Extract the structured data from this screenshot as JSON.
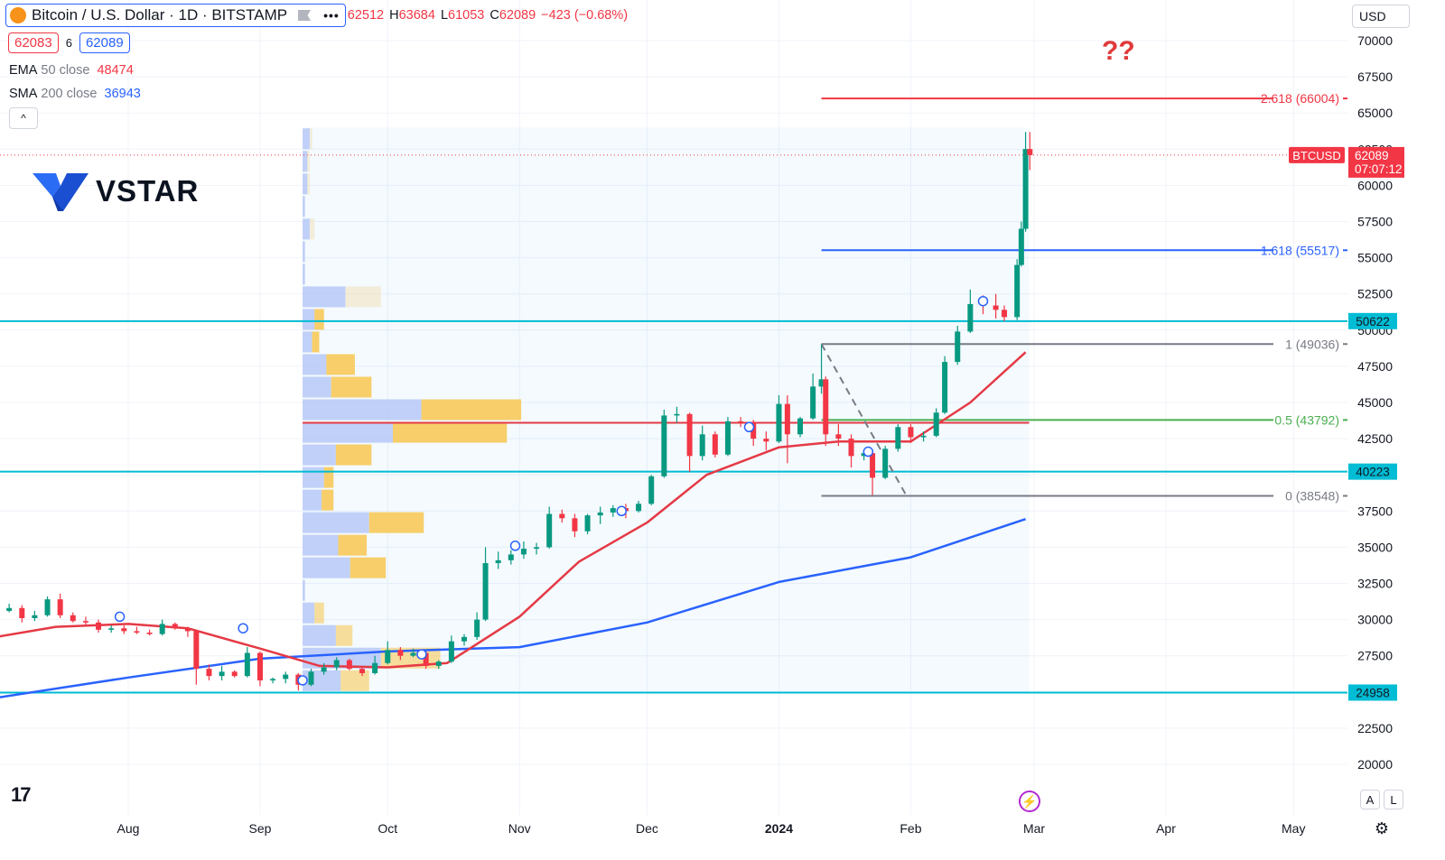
{
  "header": {
    "symbol_title": "Bitcoin / U.S. Dollar · 1D · BITSTAMP",
    "coin_glyph": "₿",
    "dots": "•••",
    "ohlc": {
      "o_label": "",
      "o_value": "62512",
      "h_label": "H",
      "h_value": "63684",
      "l_label": "L",
      "l_value": "61053",
      "c_label": "C",
      "c_value": "62089",
      "change": "−423 (−0.68%)"
    }
  },
  "price_row": {
    "sell": "62083",
    "spread": "6",
    "buy": "62089"
  },
  "indicators": [
    {
      "name": "EMA",
      "args": "50 close",
      "value": "48474",
      "color": "#f23645"
    },
    {
      "name": "SMA",
      "args": "200 close",
      "value": "36943",
      "color": "#2962ff"
    }
  ],
  "collapse_glyph": "^",
  "logo_text": "VSTAR",
  "currency": "USD",
  "annotation": "??",
  "tv_logo": "17",
  "bolt_glyph": "⚡",
  "btn_a": "A",
  "btn_l": "L",
  "gear_glyph": "⚙",
  "chart_data": {
    "type": "candlestick",
    "symbol": "BTCUSD",
    "interval": "1D",
    "yticks": [
      20000,
      22500,
      25000,
      27500,
      30000,
      32500,
      35000,
      37500,
      40000,
      42500,
      45000,
      47500,
      50000,
      52500,
      55000,
      57500,
      60000,
      62500,
      65000,
      67500,
      70000
    ],
    "xticks": [
      {
        "label": "Aug",
        "date": "2023-08-01"
      },
      {
        "label": "Sep",
        "date": "2023-09-01"
      },
      {
        "label": "Oct",
        "date": "2023-10-01"
      },
      {
        "label": "Nov",
        "date": "2023-11-01"
      },
      {
        "label": "Dec",
        "date": "2023-12-01"
      },
      {
        "label": "2024",
        "date": "2024-01-01",
        "bold": true
      },
      {
        "label": "Feb",
        "date": "2024-02-01"
      },
      {
        "label": "Mar",
        "date": "2024-03-01"
      },
      {
        "label": "Apr",
        "date": "2024-04-01"
      },
      {
        "label": "May",
        "date": "2024-05-01"
      }
    ],
    "last_price": {
      "value": 62089,
      "label": "BTCUSD",
      "countdown": "07:07:12",
      "color": "#f23645"
    },
    "horizontal_levels": [
      {
        "value": 50622,
        "label": "50622",
        "color": "#00bcd4"
      },
      {
        "value": 40223,
        "label": "40223",
        "color": "#00bcd4"
      },
      {
        "value": 24958,
        "label": "24958",
        "color": "#00bcd4"
      }
    ],
    "fibonacci": {
      "start_date": "2024-01-11",
      "end_date": "2024-02-28",
      "levels": [
        {
          "ratio": "2.618",
          "value": 66004,
          "label": "2.618 (66004)",
          "color": "#f23645"
        },
        {
          "ratio": "1.618",
          "value": 55517,
          "label": "1.618 (55517)",
          "color": "#2962ff"
        },
        {
          "ratio": "1",
          "value": 49036,
          "label": "1 (49036)",
          "color": "#787b86"
        },
        {
          "ratio": "0.5",
          "value": 43792,
          "label": "0.5 (43792)",
          "color": "#4caf50"
        },
        {
          "ratio": "0",
          "value": 38548,
          "label": "0 (38548)",
          "color": "#787b86"
        }
      ]
    },
    "fib_dashed_trend": {
      "from": {
        "date": "2024-01-11",
        "value": 49036
      },
      "to": {
        "date": "2024-01-31",
        "value": 38548
      }
    },
    "volume_profile": {
      "start_date": "2023-09-11",
      "end_date": "2024-02-28",
      "poc_value": 43600,
      "rows": [
        {
          "price": 62500,
          "buy": 3,
          "sell": 1
        },
        {
          "price": 61000,
          "buy": 2,
          "sell": 1
        },
        {
          "price": 59500,
          "buy": 2,
          "sell": 1
        },
        {
          "price": 58000,
          "buy": 1,
          "sell": 0
        },
        {
          "price": 56500,
          "buy": 3,
          "sell": 2
        },
        {
          "price": 55000,
          "buy": 1,
          "sell": 0
        },
        {
          "price": 53500,
          "buy": 1,
          "sell": 0
        },
        {
          "price": 52000,
          "buy": 18,
          "sell": 15
        },
        {
          "price": 50500,
          "buy": 5,
          "sell": 4
        },
        {
          "price": 49000,
          "buy": 4,
          "sell": 3
        },
        {
          "price": 47500,
          "buy": 10,
          "sell": 12
        },
        {
          "price": 46000,
          "buy": 12,
          "sell": 17
        },
        {
          "price": 44500,
          "buy": 50,
          "sell": 42
        },
        {
          "price": 43000,
          "buy": 38,
          "sell": 48
        },
        {
          "price": 41500,
          "buy": 14,
          "sell": 15
        },
        {
          "price": 40000,
          "buy": 9,
          "sell": 4
        },
        {
          "price": 38500,
          "buy": 8,
          "sell": 5
        },
        {
          "price": 37000,
          "buy": 28,
          "sell": 23
        },
        {
          "price": 35500,
          "buy": 15,
          "sell": 12
        },
        {
          "price": 34000,
          "buy": 20,
          "sell": 15
        },
        {
          "price": 32500,
          "buy": 1,
          "sell": 0
        },
        {
          "price": 31000,
          "buy": 5,
          "sell": 4
        },
        {
          "price": 29500,
          "buy": 14,
          "sell": 7
        },
        {
          "price": 28000,
          "buy": 33,
          "sell": 25
        },
        {
          "price": 26500,
          "buy": 16,
          "sell": 12
        }
      ]
    },
    "ema50": [
      [
        "2023-07-01",
        28800
      ],
      [
        "2023-07-15",
        29500
      ],
      [
        "2023-08-01",
        29700
      ],
      [
        "2023-08-15",
        29400
      ],
      [
        "2023-09-01",
        28000
      ],
      [
        "2023-09-15",
        26800
      ],
      [
        "2023-10-01",
        26700
      ],
      [
        "2023-10-15",
        27000
      ],
      [
        "2023-11-01",
        30200
      ],
      [
        "2023-11-15",
        34000
      ],
      [
        "2023-12-01",
        36700
      ],
      [
        "2023-12-15",
        40000
      ],
      [
        "2024-01-01",
        41900
      ],
      [
        "2024-01-15",
        42300
      ],
      [
        "2024-02-01",
        42300
      ],
      [
        "2024-02-15",
        45000
      ],
      [
        "2024-02-28",
        48474
      ]
    ],
    "sma200": [
      [
        "2023-07-01",
        24600
      ],
      [
        "2023-08-01",
        26000
      ],
      [
        "2023-09-01",
        27300
      ],
      [
        "2023-10-01",
        27800
      ],
      [
        "2023-11-01",
        28100
      ],
      [
        "2023-12-01",
        29800
      ],
      [
        "2024-01-01",
        32600
      ],
      [
        "2024-02-01",
        34300
      ],
      [
        "2024-02-28",
        36943
      ]
    ],
    "candles": [
      [
        "2023-07-01",
        30400,
        30800,
        30200,
        30600
      ],
      [
        "2023-07-04",
        30600,
        31100,
        30500,
        30800
      ],
      [
        "2023-07-07",
        30800,
        31000,
        29800,
        30100
      ],
      [
        "2023-07-10",
        30100,
        30600,
        29900,
        30300
      ],
      [
        "2023-07-13",
        30300,
        31600,
        30200,
        31400
      ],
      [
        "2023-07-16",
        31400,
        31800,
        30100,
        30300
      ],
      [
        "2023-07-19",
        30300,
        30500,
        29800,
        29900
      ],
      [
        "2023-07-22",
        29900,
        30200,
        29600,
        29800
      ],
      [
        "2023-07-25",
        29800,
        30000,
        29100,
        29300
      ],
      [
        "2023-07-28",
        29300,
        29600,
        29100,
        29400
      ],
      [
        "2023-07-31",
        29400,
        29600,
        29000,
        29200
      ],
      [
        "2023-08-03",
        29200,
        29500,
        29000,
        29100
      ],
      [
        "2023-08-06",
        29100,
        29300,
        28900,
        29000
      ],
      [
        "2023-08-09",
        29000,
        30000,
        28900,
        29700
      ],
      [
        "2023-08-12",
        29700,
        29800,
        29300,
        29400
      ],
      [
        "2023-08-15",
        29400,
        29500,
        28800,
        29200
      ],
      [
        "2023-08-17",
        29200,
        29300,
        25500,
        26600
      ],
      [
        "2023-08-20",
        26600,
        26900,
        25800,
        26100
      ],
      [
        "2023-08-23",
        26100,
        26800,
        25800,
        26400
      ],
      [
        "2023-08-26",
        26400,
        26500,
        26000,
        26100
      ],
      [
        "2023-08-29",
        26100,
        28100,
        26000,
        27700
      ],
      [
        "2023-09-01",
        27700,
        27800,
        25400,
        25800
      ],
      [
        "2023-09-04",
        25800,
        26000,
        25600,
        25900
      ],
      [
        "2023-09-07",
        25900,
        26400,
        25600,
        26200
      ],
      [
        "2023-09-10",
        26200,
        26300,
        25100,
        25500
      ],
      [
        "2023-09-13",
        25500,
        26600,
        25400,
        26400
      ],
      [
        "2023-09-16",
        26400,
        27000,
        26200,
        26700
      ],
      [
        "2023-09-19",
        26700,
        27400,
        26500,
        27200
      ],
      [
        "2023-09-22",
        27200,
        27300,
        26500,
        26600
      ],
      [
        "2023-09-25",
        26600,
        26700,
        26100,
        26300
      ],
      [
        "2023-09-28",
        26300,
        27500,
        26200,
        27000
      ],
      [
        "2023-10-01",
        27000,
        28500,
        26900,
        27900
      ],
      [
        "2023-10-04",
        27900,
        28100,
        27200,
        27500
      ],
      [
        "2023-10-07",
        27500,
        28000,
        27400,
        27700
      ],
      [
        "2023-10-10",
        27700,
        27800,
        26600,
        26800
      ],
      [
        "2023-10-13",
        26800,
        27200,
        26600,
        27100
      ],
      [
        "2023-10-16",
        27100,
        28900,
        27000,
        28500
      ],
      [
        "2023-10-19",
        28500,
        29000,
        28200,
        28800
      ],
      [
        "2023-10-22",
        28800,
        30500,
        28600,
        30000
      ],
      [
        "2023-10-24",
        30000,
        35000,
        29900,
        33900
      ],
      [
        "2023-10-27",
        33900,
        34700,
        33500,
        34100
      ],
      [
        "2023-10-30",
        34100,
        34800,
        33800,
        34500
      ],
      [
        "2023-11-02",
        34500,
        35400,
        34200,
        34900
      ],
      [
        "2023-11-05",
        34900,
        35300,
        34500,
        35000
      ],
      [
        "2023-11-08",
        35000,
        37800,
        34900,
        37300
      ],
      [
        "2023-11-11",
        37300,
        37600,
        36700,
        37000
      ],
      [
        "2023-11-14",
        37000,
        37300,
        35700,
        36100
      ],
      [
        "2023-11-17",
        36100,
        37300,
        35900,
        37200
      ],
      [
        "2023-11-20",
        37200,
        37800,
        36600,
        37400
      ],
      [
        "2023-11-23",
        37400,
        37900,
        37100,
        37700
      ],
      [
        "2023-11-26",
        37700,
        38000,
        37000,
        37500
      ],
      [
        "2023-11-29",
        37500,
        38200,
        37400,
        38000
      ],
      [
        "2023-12-02",
        38000,
        40000,
        37900,
        39900
      ],
      [
        "2023-12-05",
        39900,
        44500,
        39800,
        44100
      ],
      [
        "2023-12-08",
        44100,
        44700,
        43600,
        44200
      ],
      [
        "2023-12-11",
        44200,
        44300,
        40200,
        41300
      ],
      [
        "2023-12-14",
        41300,
        43400,
        41000,
        42800
      ],
      [
        "2023-12-17",
        42800,
        43000,
        41200,
        41400
      ],
      [
        "2023-12-20",
        41400,
        44000,
        41300,
        43700
      ],
      [
        "2023-12-23",
        43700,
        44000,
        43300,
        43600
      ],
      [
        "2023-12-26",
        43600,
        43800,
        42000,
        42500
      ],
      [
        "2023-12-29",
        42500,
        43000,
        41700,
        42300
      ],
      [
        "2024-01-01",
        42300,
        45500,
        42200,
        44900
      ],
      [
        "2024-01-03",
        44900,
        45500,
        40800,
        42800
      ],
      [
        "2024-01-06",
        42800,
        44000,
        42600,
        43900
      ],
      [
        "2024-01-09",
        43900,
        47000,
        43800,
        46100
      ],
      [
        "2024-01-11",
        46100,
        49000,
        45600,
        46600
      ],
      [
        "2024-01-12",
        46600,
        46800,
        42000,
        42800
      ],
      [
        "2024-01-15",
        42800,
        43500,
        42000,
        42500
      ],
      [
        "2024-01-18",
        42500,
        42800,
        40500,
        41300
      ],
      [
        "2024-01-21",
        41300,
        41700,
        41000,
        41500
      ],
      [
        "2024-01-23",
        41500,
        41600,
        38600,
        39800
      ],
      [
        "2024-01-26",
        39800,
        42000,
        39700,
        41800
      ],
      [
        "2024-01-29",
        41800,
        43500,
        41600,
        43300
      ],
      [
        "2024-02-01",
        43300,
        43500,
        42200,
        42600
      ],
      [
        "2024-02-04",
        42600,
        43000,
        42300,
        42700
      ],
      [
        "2024-02-07",
        42700,
        44600,
        42600,
        44300
      ],
      [
        "2024-02-09",
        44300,
        48200,
        44200,
        47800
      ],
      [
        "2024-02-12",
        47800,
        50300,
        47600,
        49900
      ],
      [
        "2024-02-15",
        49900,
        52800,
        49800,
        51800
      ],
      [
        "2024-02-18",
        51800,
        52400,
        51100,
        51700
      ],
      [
        "2024-02-21",
        51700,
        52500,
        50800,
        51400
      ],
      [
        "2024-02-23",
        51400,
        51700,
        50600,
        50900
      ],
      [
        "2024-02-26",
        50900,
        54900,
        50700,
        54500
      ],
      [
        "2024-02-27",
        54500,
        57500,
        54400,
        57000
      ],
      [
        "2024-02-28",
        57000,
        63684,
        56800,
        62512
      ],
      [
        "2024-02-29",
        62512,
        63684,
        61053,
        62089
      ]
    ],
    "event_markers": [
      [
        "2023-07-30",
        30200
      ],
      [
        "2023-08-28",
        29400
      ],
      [
        "2023-09-11",
        25800
      ],
      [
        "2023-10-09",
        27600
      ],
      [
        "2023-10-31",
        35100
      ],
      [
        "2023-11-25",
        37500
      ],
      [
        "2023-12-25",
        43300
      ],
      [
        "2024-01-22",
        41600
      ],
      [
        "2024-02-18",
        52000
      ]
    ]
  }
}
